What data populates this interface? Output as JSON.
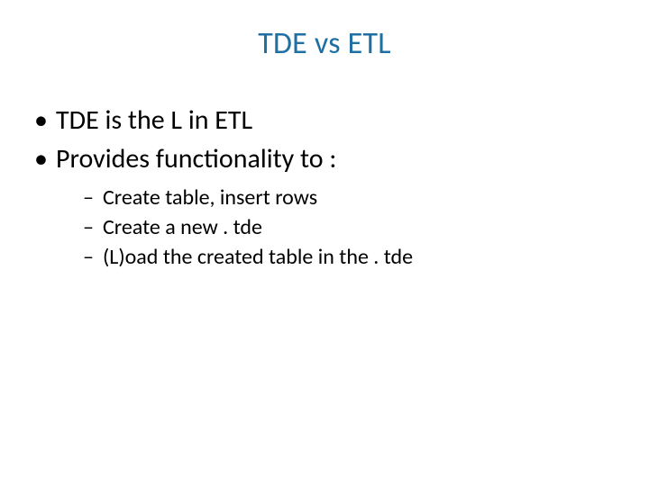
{
  "slide": {
    "title": "TDE vs ETL",
    "title_color": "#1f6fa3",
    "title_fontsize": 34,
    "body_color": "#000000",
    "l1_fontsize": 30,
    "l2_fontsize": 24,
    "background_color": "#ffffff",
    "bullets_l1": [
      "TDE is the L in ETL",
      "Provides functionality to :"
    ],
    "bullets_l2": [
      "Create table, insert rows",
      "Create a new . tde",
      "(L)oad the created table in the . tde"
    ]
  }
}
